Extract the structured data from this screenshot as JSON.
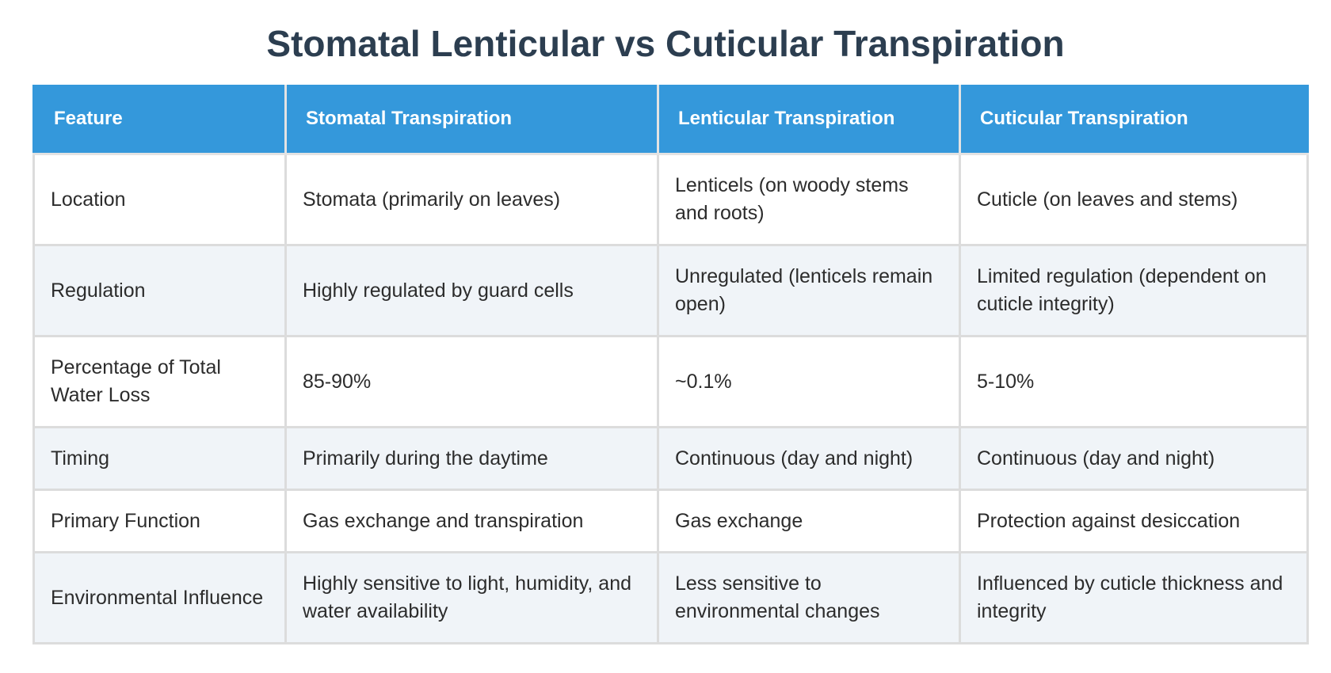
{
  "title": "Stomatal Lenticular vs Cuticular Transpiration",
  "table": {
    "headers": [
      "Feature",
      "Stomatal Transpiration",
      "Lenticular Transpiration",
      "Cuticular Transpiration"
    ],
    "rows": [
      [
        "Location",
        "Stomata (primarily on leaves)",
        "Lenticels (on woody stems and roots)",
        "Cuticle (on leaves and stems)"
      ],
      [
        "Regulation",
        "Highly regulated by guard cells",
        "Unregulated (lenticels remain open)",
        "Limited regulation (dependent on cuticle integrity)"
      ],
      [
        "Percentage of Total Water Loss",
        "85-90%",
        "~0.1%",
        "5-10%"
      ],
      [
        "Timing",
        "Primarily during the daytime",
        "Continuous (day and night)",
        "Continuous (day and night)"
      ],
      [
        "Primary Function",
        "Gas exchange and transpiration",
        "Gas exchange",
        "Protection against desiccation"
      ],
      [
        "Environmental Influence",
        "Highly sensitive to light, humidity, and water availability",
        "Less sensitive to environmental changes",
        "Influenced by cuticle thickness and integrity"
      ]
    ]
  },
  "colors": {
    "header_bg": "#3498db",
    "header_text": "#ffffff",
    "title_text": "#2c3e50",
    "row_alt_bg": "#f0f4f8",
    "border": "#dcdcdc"
  }
}
